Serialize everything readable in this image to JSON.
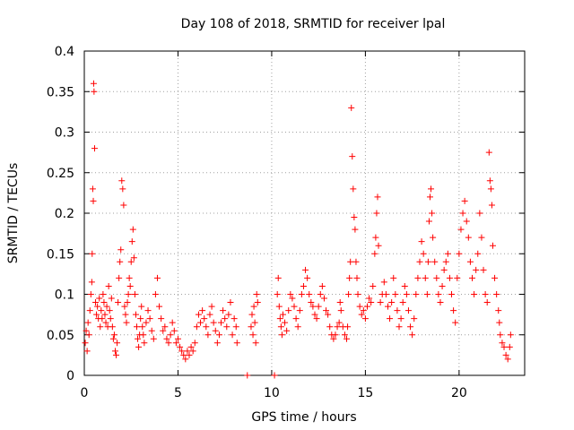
{
  "chart_data": {
    "type": "scatter",
    "title": "Day 108 of 2018, SRMTID for receiver lpal",
    "xlabel": "GPS time / hours",
    "ylabel": "SRMTID / TECUs",
    "xlim": [
      0,
      23.5
    ],
    "ylim": [
      0,
      0.4
    ],
    "xticks": [
      0,
      5,
      10,
      15,
      20
    ],
    "xtick_labels": [
      "0",
      "5",
      "10",
      "15",
      "20"
    ],
    "yticks": [
      0,
      0.05,
      0.1,
      0.15,
      0.2,
      0.25,
      0.3,
      0.35,
      0.4
    ],
    "ytick_labels": [
      "0",
      "0.05",
      "0.1",
      "0.15",
      "0.2",
      "0.25",
      "0.3",
      "0.35",
      "0.4"
    ],
    "grid": true,
    "legend": "none",
    "marker": "+",
    "color": "#ff0000",
    "series": [
      {
        "name": "lpal",
        "points": [
          [
            0.05,
            0.04
          ],
          [
            0.1,
            0.055
          ],
          [
            0.15,
            0.03
          ],
          [
            0.2,
            0.065
          ],
          [
            0.25,
            0.05
          ],
          [
            0.3,
            0.08
          ],
          [
            0.35,
            0.1
          ],
          [
            0.4,
            0.115
          ],
          [
            0.42,
            0.15
          ],
          [
            0.45,
            0.23
          ],
          [
            0.48,
            0.215
          ],
          [
            0.5,
            0.36
          ],
          [
            0.52,
            0.35
          ],
          [
            0.55,
            0.28
          ],
          [
            0.6,
            0.09
          ],
          [
            0.65,
            0.075
          ],
          [
            0.7,
            0.085
          ],
          [
            0.75,
            0.07
          ],
          [
            0.8,
            0.095
          ],
          [
            0.85,
            0.06
          ],
          [
            0.9,
            0.08
          ],
          [
            0.95,
            0.07
          ],
          [
            1.0,
            0.1
          ],
          [
            1.05,
            0.09
          ],
          [
            1.1,
            0.075
          ],
          [
            1.15,
            0.065
          ],
          [
            1.2,
            0.085
          ],
          [
            1.25,
            0.06
          ],
          [
            1.3,
            0.11
          ],
          [
            1.35,
            0.08
          ],
          [
            1.4,
            0.07
          ],
          [
            1.45,
            0.095
          ],
          [
            1.5,
            0.06
          ],
          [
            1.55,
            0.045
          ],
          [
            1.6,
            0.05
          ],
          [
            1.65,
            0.03
          ],
          [
            1.7,
            0.025
          ],
          [
            1.75,
            0.04
          ],
          [
            1.8,
            0.09
          ],
          [
            1.85,
            0.12
          ],
          [
            1.9,
            0.14
          ],
          [
            1.95,
            0.155
          ],
          [
            2.0,
            0.24
          ],
          [
            2.05,
            0.23
          ],
          [
            2.1,
            0.21
          ],
          [
            2.15,
            0.085
          ],
          [
            2.2,
            0.075
          ],
          [
            2.25,
            0.065
          ],
          [
            2.3,
            0.09
          ],
          [
            2.35,
            0.1
          ],
          [
            2.4,
            0.12
          ],
          [
            2.45,
            0.11
          ],
          [
            2.5,
            0.14
          ],
          [
            2.55,
            0.165
          ],
          [
            2.6,
            0.18
          ],
          [
            2.65,
            0.145
          ],
          [
            2.7,
            0.1
          ],
          [
            2.75,
            0.075
          ],
          [
            2.8,
            0.06
          ],
          [
            2.85,
            0.045
          ],
          [
            2.9,
            0.035
          ],
          [
            2.95,
            0.05
          ],
          [
            3.0,
            0.07
          ],
          [
            3.05,
            0.085
          ],
          [
            3.1,
            0.06
          ],
          [
            3.15,
            0.05
          ],
          [
            3.2,
            0.04
          ],
          [
            3.3,
            0.065
          ],
          [
            3.4,
            0.08
          ],
          [
            3.5,
            0.07
          ],
          [
            3.6,
            0.055
          ],
          [
            3.7,
            0.045
          ],
          [
            3.8,
            0.1
          ],
          [
            3.9,
            0.12
          ],
          [
            4.0,
            0.085
          ],
          [
            4.1,
            0.07
          ],
          [
            4.2,
            0.055
          ],
          [
            4.3,
            0.06
          ],
          [
            4.4,
            0.045
          ],
          [
            4.5,
            0.04
          ],
          [
            4.6,
            0.05
          ],
          [
            4.7,
            0.065
          ],
          [
            4.8,
            0.055
          ],
          [
            4.9,
            0.04
          ],
          [
            5.0,
            0.045
          ],
          [
            5.1,
            0.035
          ],
          [
            5.2,
            0.03
          ],
          [
            5.3,
            0.025
          ],
          [
            5.4,
            0.02
          ],
          [
            5.5,
            0.03
          ],
          [
            5.6,
            0.025
          ],
          [
            5.7,
            0.035
          ],
          [
            5.8,
            0.03
          ],
          [
            5.9,
            0.04
          ],
          [
            6.0,
            0.06
          ],
          [
            6.1,
            0.075
          ],
          [
            6.2,
            0.065
          ],
          [
            6.3,
            0.08
          ],
          [
            6.4,
            0.07
          ],
          [
            6.5,
            0.06
          ],
          [
            6.6,
            0.05
          ],
          [
            6.7,
            0.075
          ],
          [
            6.8,
            0.085
          ],
          [
            6.9,
            0.065
          ],
          [
            7.0,
            0.055
          ],
          [
            7.1,
            0.04
          ],
          [
            7.2,
            0.05
          ],
          [
            7.3,
            0.065
          ],
          [
            7.4,
            0.08
          ],
          [
            7.5,
            0.07
          ],
          [
            7.6,
            0.06
          ],
          [
            7.7,
            0.075
          ],
          [
            7.8,
            0.09
          ],
          [
            7.9,
            0.05
          ],
          [
            8.0,
            0.07
          ],
          [
            8.1,
            0.06
          ],
          [
            8.15,
            0.04
          ],
          [
            8.7,
            0.0
          ],
          [
            8.9,
            0.06
          ],
          [
            8.95,
            0.075
          ],
          [
            9.0,
            0.05
          ],
          [
            9.05,
            0.085
          ],
          [
            9.1,
            0.065
          ],
          [
            9.15,
            0.04
          ],
          [
            9.2,
            0.1
          ],
          [
            9.25,
            0.09
          ],
          [
            10.15,
            0.0
          ],
          [
            10.3,
            0.1
          ],
          [
            10.35,
            0.12
          ],
          [
            10.4,
            0.085
          ],
          [
            10.45,
            0.07
          ],
          [
            10.5,
            0.06
          ],
          [
            10.55,
            0.05
          ],
          [
            10.6,
            0.075
          ],
          [
            10.7,
            0.065
          ],
          [
            10.8,
            0.055
          ],
          [
            10.9,
            0.08
          ],
          [
            11.0,
            0.1
          ],
          [
            11.1,
            0.095
          ],
          [
            11.2,
            0.085
          ],
          [
            11.3,
            0.07
          ],
          [
            11.4,
            0.06
          ],
          [
            11.5,
            0.08
          ],
          [
            11.6,
            0.1
          ],
          [
            11.7,
            0.11
          ],
          [
            11.8,
            0.13
          ],
          [
            11.9,
            0.12
          ],
          [
            12.0,
            0.1
          ],
          [
            12.1,
            0.09
          ],
          [
            12.2,
            0.085
          ],
          [
            12.3,
            0.075
          ],
          [
            12.4,
            0.07
          ],
          [
            12.5,
            0.085
          ],
          [
            12.6,
            0.1
          ],
          [
            12.7,
            0.11
          ],
          [
            12.8,
            0.095
          ],
          [
            12.9,
            0.08
          ],
          [
            13.0,
            0.075
          ],
          [
            13.1,
            0.06
          ],
          [
            13.2,
            0.05
          ],
          [
            13.3,
            0.045
          ],
          [
            13.4,
            0.05
          ],
          [
            13.5,
            0.06
          ],
          [
            13.6,
            0.065
          ],
          [
            13.65,
            0.09
          ],
          [
            13.7,
            0.08
          ],
          [
            13.8,
            0.06
          ],
          [
            13.9,
            0.05
          ],
          [
            14.0,
            0.045
          ],
          [
            14.05,
            0.06
          ],
          [
            14.1,
            0.1
          ],
          [
            14.15,
            0.12
          ],
          [
            14.2,
            0.14
          ],
          [
            14.25,
            0.33
          ],
          [
            14.3,
            0.27
          ],
          [
            14.35,
            0.23
          ],
          [
            14.4,
            0.195
          ],
          [
            14.45,
            0.18
          ],
          [
            14.5,
            0.14
          ],
          [
            14.55,
            0.12
          ],
          [
            14.6,
            0.1
          ],
          [
            14.7,
            0.085
          ],
          [
            14.8,
            0.075
          ],
          [
            14.9,
            0.08
          ],
          [
            15.0,
            0.07
          ],
          [
            15.1,
            0.085
          ],
          [
            15.2,
            0.095
          ],
          [
            15.3,
            0.09
          ],
          [
            15.4,
            0.11
          ],
          [
            15.5,
            0.15
          ],
          [
            15.55,
            0.17
          ],
          [
            15.6,
            0.2
          ],
          [
            15.65,
            0.22
          ],
          [
            15.7,
            0.16
          ],
          [
            15.8,
            0.09
          ],
          [
            15.9,
            0.1
          ],
          [
            16.0,
            0.115
          ],
          [
            16.1,
            0.1
          ],
          [
            16.2,
            0.085
          ],
          [
            16.3,
            0.07
          ],
          [
            16.4,
            0.09
          ],
          [
            16.5,
            0.12
          ],
          [
            16.6,
            0.1
          ],
          [
            16.7,
            0.08
          ],
          [
            16.8,
            0.06
          ],
          [
            16.9,
            0.07
          ],
          [
            17.0,
            0.09
          ],
          [
            17.1,
            0.11
          ],
          [
            17.2,
            0.1
          ],
          [
            17.3,
            0.08
          ],
          [
            17.4,
            0.06
          ],
          [
            17.5,
            0.05
          ],
          [
            17.6,
            0.07
          ],
          [
            17.7,
            0.1
          ],
          [
            17.8,
            0.12
          ],
          [
            17.9,
            0.14
          ],
          [
            18.0,
            0.165
          ],
          [
            18.1,
            0.15
          ],
          [
            18.2,
            0.12
          ],
          [
            18.3,
            0.1
          ],
          [
            18.35,
            0.14
          ],
          [
            18.4,
            0.19
          ],
          [
            18.45,
            0.22
          ],
          [
            18.5,
            0.23
          ],
          [
            18.55,
            0.2
          ],
          [
            18.6,
            0.17
          ],
          [
            18.7,
            0.14
          ],
          [
            18.8,
            0.12
          ],
          [
            18.9,
            0.1
          ],
          [
            19.0,
            0.09
          ],
          [
            19.1,
            0.11
          ],
          [
            19.2,
            0.13
          ],
          [
            19.3,
            0.14
          ],
          [
            19.4,
            0.15
          ],
          [
            19.5,
            0.12
          ],
          [
            19.6,
            0.1
          ],
          [
            19.7,
            0.08
          ],
          [
            19.8,
            0.065
          ],
          [
            19.9,
            0.12
          ],
          [
            20.0,
            0.15
          ],
          [
            20.1,
            0.18
          ],
          [
            20.2,
            0.2
          ],
          [
            20.3,
            0.215
          ],
          [
            20.4,
            0.19
          ],
          [
            20.5,
            0.17
          ],
          [
            20.6,
            0.14
          ],
          [
            20.7,
            0.12
          ],
          [
            20.8,
            0.1
          ],
          [
            20.9,
            0.13
          ],
          [
            21.0,
            0.15
          ],
          [
            21.1,
            0.2
          ],
          [
            21.2,
            0.17
          ],
          [
            21.3,
            0.13
          ],
          [
            21.4,
            0.1
          ],
          [
            21.5,
            0.09
          ],
          [
            21.6,
            0.275
          ],
          [
            21.65,
            0.24
          ],
          [
            21.7,
            0.23
          ],
          [
            21.75,
            0.21
          ],
          [
            21.8,
            0.16
          ],
          [
            21.9,
            0.12
          ],
          [
            22.0,
            0.1
          ],
          [
            22.1,
            0.08
          ],
          [
            22.15,
            0.065
          ],
          [
            22.2,
            0.05
          ],
          [
            22.3,
            0.04
          ],
          [
            22.4,
            0.035
          ],
          [
            22.5,
            0.025
          ],
          [
            22.6,
            0.02
          ],
          [
            22.7,
            0.035
          ],
          [
            22.75,
            0.05
          ]
        ]
      }
    ]
  }
}
